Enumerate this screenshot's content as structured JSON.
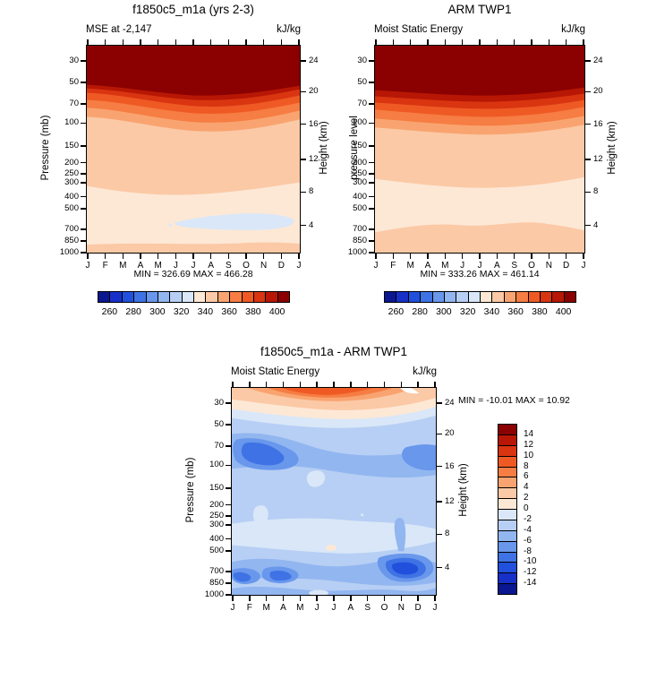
{
  "palette": [
    "#0a1791",
    "#1730c8",
    "#2050dc",
    "#3f72e4",
    "#6897ec",
    "#92b6f0",
    "#b7cff4",
    "#d9e7f8",
    "#fde8d5",
    "#fbc9a6",
    "#f9a470",
    "#f67d43",
    "#ef5a24",
    "#d93511",
    "#b71704",
    "#8b0000"
  ],
  "months": [
    "J",
    "F",
    "M",
    "A",
    "M",
    "J",
    "J",
    "A",
    "S",
    "O",
    "N",
    "D",
    "J"
  ],
  "pressure_labels": [
    "30",
    "50",
    "70",
    "100",
    "150",
    "200",
    "250",
    "300",
    "400",
    "500",
    "700",
    "850",
    "1000"
  ],
  "pressure_fracs": [
    0.077,
    0.18,
    0.283,
    0.375,
    0.485,
    0.565,
    0.617,
    0.66,
    0.728,
    0.785,
    0.885,
    0.94,
    0.995
  ],
  "height_labels": [
    "24",
    "20",
    "16",
    "12",
    "8",
    "4"
  ],
  "height_fracs": [
    0.078,
    0.225,
    0.38,
    0.55,
    0.705,
    0.865
  ],
  "colorbar_labels": [
    "260",
    "280",
    "300",
    "320",
    "340",
    "360",
    "380",
    "400"
  ],
  "diff_colorbar_labels": [
    "14",
    "12",
    "10",
    "8",
    "6",
    "4",
    "2",
    "0",
    "-2",
    "-4",
    "-6",
    "-8",
    "-10",
    "-12",
    "-14"
  ],
  "panels": [
    {
      "title": "f1850c5_m1a (yrs 2-3)",
      "subtitle_left": "MSE at -2,147",
      "units": "kJ/kg",
      "minmax": "MIN = 326.69 MAX = 466.28",
      "ylabel_left": "Pressure (mb)",
      "ylabel_right": "Height (km)"
    },
    {
      "title": "ARM TWP1",
      "subtitle_left": "Moist Static Energy",
      "units": "kJ/kg",
      "minmax": "MIN = 333.26 MAX = 461.14",
      "ylabel_left": "pressure level",
      "ylabel_right": "Height (km)"
    },
    {
      "title": "f1850c5_m1a - ARM TWP1",
      "subtitle_left": "Moist Static Energy",
      "units": "kJ/kg",
      "minmax": "MIN = -10.01 MAX = 10.92",
      "ylabel_left": "Pressure (mb)",
      "ylabel_right": "Height (km)"
    }
  ],
  "chart_data": [
    {
      "type": "contour",
      "title": "f1850c5_m1a (yrs 2-3)",
      "field_label": "MSE at -2,147",
      "units": "kJ/kg",
      "x_categories": [
        "J",
        "F",
        "M",
        "A",
        "M",
        "J",
        "J",
        "A",
        "S",
        "O",
        "N",
        "D",
        "J"
      ],
      "y_axis_left": {
        "label": "Pressure (mb)",
        "ticks": [
          30,
          50,
          70,
          100,
          150,
          200,
          250,
          300,
          400,
          500,
          700,
          850,
          1000
        ]
      },
      "y_axis_right": {
        "label": "Height (km)",
        "ticks": [
          24,
          20,
          16,
          12,
          8,
          4
        ]
      },
      "contour_levels": [
        260,
        270,
        280,
        290,
        300,
        310,
        320,
        330,
        340,
        350,
        360,
        370,
        380,
        390,
        400
      ],
      "min": 326.69,
      "max": 466.28,
      "colorbar_orientation": "horizontal",
      "description": "Filled contours: >400 kJ/kg (dark red) above ~50 mb, banded decrease 400-350 between 50-100 mb, 340-350 from ~100-300 mb, 330-340 below 300 mb, weak 320-330 minimum (light blue patch) near 600-700 mb in Aug-Dec, thin 340-350 layer at 1000 mb."
    },
    {
      "type": "contour",
      "title": "ARM TWP1",
      "field_label": "Moist Static Energy",
      "units": "kJ/kg",
      "x_categories": [
        "J",
        "F",
        "M",
        "A",
        "M",
        "J",
        "J",
        "A",
        "S",
        "O",
        "N",
        "D",
        "J"
      ],
      "y_axis_left": {
        "label": "pressure level",
        "ticks": [
          30,
          50,
          70,
          100,
          150,
          200,
          250,
          300,
          400,
          500,
          700,
          850,
          1000
        ]
      },
      "y_axis_right": {
        "label": "Height (km)",
        "ticks": [
          24,
          20,
          16,
          12,
          8,
          4
        ]
      },
      "contour_levels": [
        260,
        270,
        280,
        290,
        300,
        310,
        320,
        330,
        340,
        350,
        360,
        370,
        380,
        390,
        400
      ],
      "min": 333.26,
      "max": 461.14,
      "colorbar_orientation": "horizontal",
      "description": "Filled contours: >400 kJ/kg (dark red) above ~50 mb, banded decrease 400-350 between 50-100 mb, 340-350 from ~100-300 mb, 330-340 cream region below 300 mb, 340-350 layer again near 850-1000 mb."
    },
    {
      "type": "contour",
      "title": "f1850c5_m1a - ARM TWP1",
      "field_label": "Moist Static Energy",
      "units": "kJ/kg",
      "x_categories": [
        "J",
        "F",
        "M",
        "A",
        "M",
        "J",
        "J",
        "A",
        "S",
        "O",
        "N",
        "D",
        "J"
      ],
      "y_axis_left": {
        "label": "Pressure (mb)",
        "ticks": [
          30,
          50,
          70,
          100,
          150,
          200,
          250,
          300,
          400,
          500,
          700,
          850,
          1000
        ]
      },
      "y_axis_right": {
        "label": "Height (km)",
        "ticks": [
          24,
          20,
          16,
          12,
          8,
          4
        ]
      },
      "contour_levels": [
        -14,
        -12,
        -10,
        -8,
        -6,
        -4,
        -2,
        0,
        2,
        4,
        6,
        8,
        10,
        12,
        14
      ],
      "min": -10.01,
      "max": 10.92,
      "colorbar_orientation": "vertical",
      "description": "Difference field: positive +2 to +10 (orange/red) near 30 mb peaking Apr-Oct; mostly -2 to -4 (light blue) through the troposphere; -6 to -10 minima near 70-100 mb in Feb-Apr and Oct-Dec; -2 to 0 band near 300-500 mb with small positive spot in Jun; -6 to -10 spots near 700-850 mb in Jan-Apr and Oct-Dec."
    }
  ]
}
